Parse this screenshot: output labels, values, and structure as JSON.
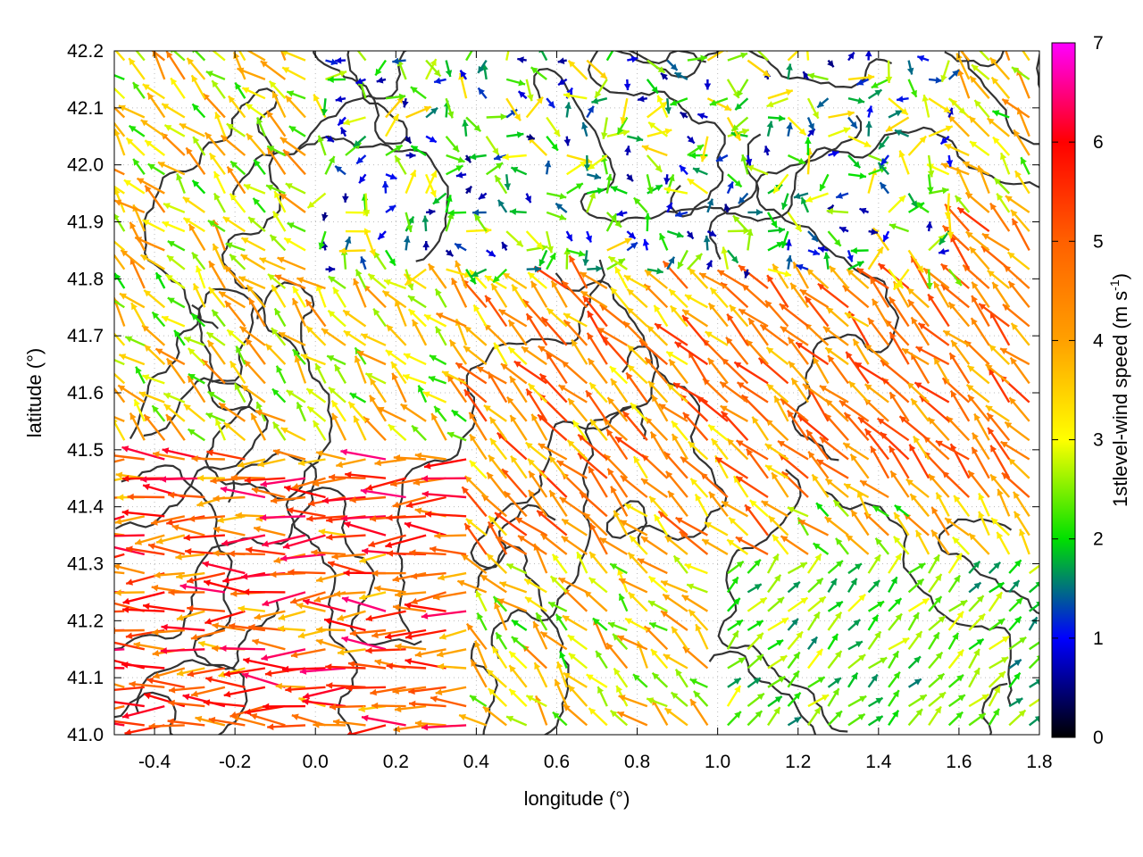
{
  "chart_data": {
    "type": "vector-field",
    "xlabel": "longitude (°)",
    "ylabel": "latitude (°)",
    "colorbar_label_prefix": "1stlevel-wind speed (m s",
    "colorbar_label_exp": "-1",
    "colorbar_label_suffix": ")",
    "xlim": [
      -0.5,
      1.8
    ],
    "ylim": [
      41.0,
      42.2
    ],
    "xticks": [
      {
        "value": -0.4,
        "label": "-0.4"
      },
      {
        "value": -0.2,
        "label": "-0.2"
      },
      {
        "value": 0.0,
        "label": "0.0"
      },
      {
        "value": 0.2,
        "label": "0.2"
      },
      {
        "value": 0.4,
        "label": "0.4"
      },
      {
        "value": 0.6,
        "label": "0.6"
      },
      {
        "value": 0.8,
        "label": "0.8"
      },
      {
        "value": 1.0,
        "label": "1.0"
      },
      {
        "value": 1.2,
        "label": "1.2"
      },
      {
        "value": 1.4,
        "label": "1.4"
      },
      {
        "value": 1.6,
        "label": "1.6"
      },
      {
        "value": 1.8,
        "label": "1.8"
      }
    ],
    "yticks": [
      {
        "value": 41.0,
        "label": "41.0"
      },
      {
        "value": 41.1,
        "label": "41.1"
      },
      {
        "value": 41.2,
        "label": "41.2"
      },
      {
        "value": 41.3,
        "label": "41.3"
      },
      {
        "value": 41.4,
        "label": "41.4"
      },
      {
        "value": 41.5,
        "label": "41.5"
      },
      {
        "value": 41.6,
        "label": "41.6"
      },
      {
        "value": 41.7,
        "label": "41.7"
      },
      {
        "value": 41.8,
        "label": "41.8"
      },
      {
        "value": 41.9,
        "label": "41.9"
      },
      {
        "value": 42.0,
        "label": "42.0"
      },
      {
        "value": 42.1,
        "label": "42.1"
      },
      {
        "value": 42.2,
        "label": "42.2"
      }
    ],
    "colorbar": {
      "range": [
        0,
        7
      ],
      "ticks": [
        {
          "value": 0,
          "label": "0"
        },
        {
          "value": 1,
          "label": "1"
        },
        {
          "value": 2,
          "label": "2"
        },
        {
          "value": 3,
          "label": "3"
        },
        {
          "value": 4,
          "label": "4"
        },
        {
          "value": 5,
          "label": "5"
        },
        {
          "value": 6,
          "label": "6"
        },
        {
          "value": 7,
          "label": "7"
        }
      ],
      "stops": [
        {
          "value": 0,
          "color": "#000000"
        },
        {
          "value": 1,
          "color": "#0000ff"
        },
        {
          "value": 2,
          "color": "#00e000"
        },
        {
          "value": 3,
          "color": "#ffff00"
        },
        {
          "value": 4,
          "color": "#ffa000"
        },
        {
          "value": 5,
          "color": "#ff6000"
        },
        {
          "value": 6,
          "color": "#ff0000"
        },
        {
          "value": 7,
          "color": "#ff00ff"
        }
      ]
    },
    "grid": "dotted",
    "contour_color": "#333333",
    "vectors_note_regions": [
      {
        "region": "west",
        "lon_range": [
          -0.5,
          0.4
        ],
        "lat_range": [
          41.0,
          41.5
        ],
        "direction": "westward",
        "speed_range": [
          3.5,
          6.5
        ]
      },
      {
        "region": "center",
        "lon_range": [
          0.4,
          1.2
        ],
        "lat_range": [
          41.3,
          41.8
        ],
        "direction": "north-westward",
        "speed_range": [
          3.0,
          5.5
        ]
      },
      {
        "region": "north",
        "lon_range": [
          0.0,
          1.6
        ],
        "lat_range": [
          41.8,
          42.2
        ],
        "direction": "mixed",
        "speed_range": [
          0.5,
          3.5
        ]
      },
      {
        "region": "south-east",
        "lon_range": [
          1.0,
          1.8
        ],
        "lat_range": [
          41.0,
          41.3
        ],
        "direction": "north-eastward",
        "speed_range": [
          1.5,
          3.0
        ]
      },
      {
        "region": "east",
        "lon_range": [
          1.2,
          1.8
        ],
        "lat_range": [
          41.4,
          41.9
        ],
        "direction": "north-westward",
        "speed_range": [
          3.5,
          5.5
        ]
      }
    ]
  }
}
